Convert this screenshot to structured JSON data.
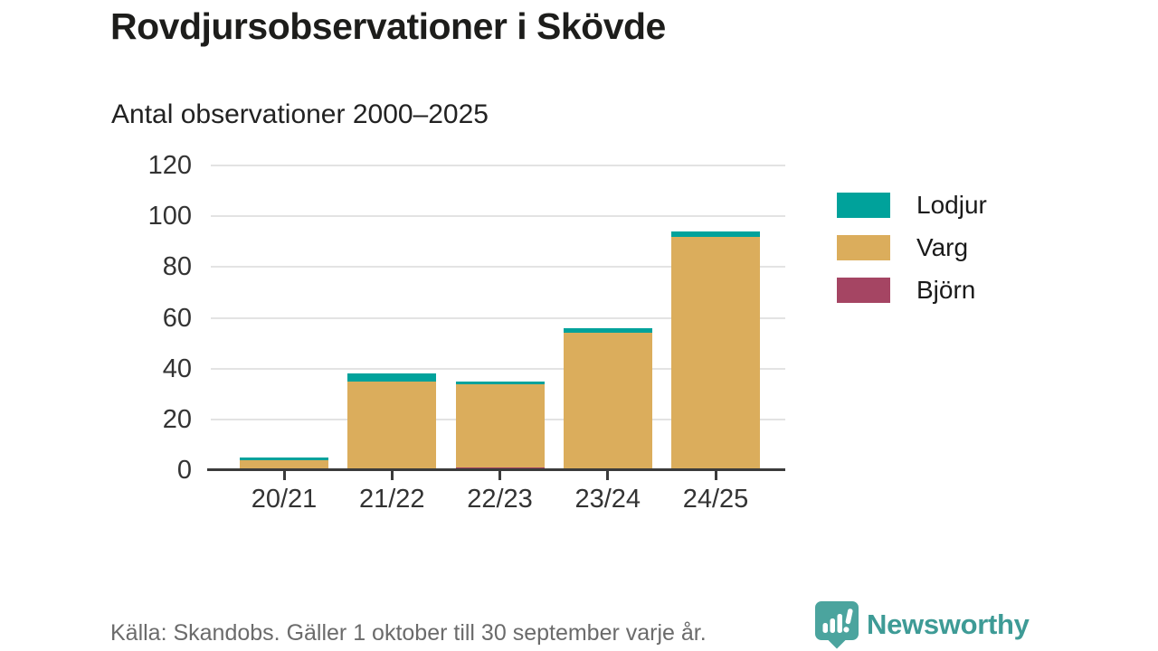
{
  "title": "Rovdjursobservationer i Skövde",
  "subtitle": "Antal observationer 2000–2025",
  "footer": {
    "source": "Källa: Skandobs. Gäller 1 oktober till 30 september varje år."
  },
  "branding": {
    "name": "Newsworthy",
    "icon": "bar-chart-speech-bubble-icon",
    "text_color": "#3e9b96",
    "icon_color": "#4ba49e"
  },
  "colors": {
    "lodjur": "#00a29b",
    "varg": "#dbad5c",
    "bjorn": "#a54563",
    "title_text": "#1d1d1b",
    "axis_text": "#333333",
    "gridline": "#e3e3e3",
    "axis_line": "#3b3b3b",
    "source_text": "#6b6b6b"
  },
  "chart_data": {
    "type": "bar",
    "stacked": true,
    "title": "Rovdjursobservationer i Skövde",
    "subtitle": "Antal observationer 2000–2025",
    "categories": [
      "20/21",
      "21/22",
      "22/23",
      "23/24",
      "24/25"
    ],
    "series": [
      {
        "name": "Björn",
        "color": "#a54563",
        "values": [
          0,
          0,
          1,
          0,
          0
        ]
      },
      {
        "name": "Varg",
        "color": "#dbad5c",
        "values": [
          4,
          35,
          33,
          54,
          92
        ]
      },
      {
        "name": "Lodjur",
        "color": "#00a29b",
        "values": [
          1,
          3,
          1,
          2,
          2
        ]
      }
    ],
    "totals": [
      5,
      38,
      35,
      56,
      94
    ],
    "xlabel": "",
    "ylabel": "",
    "ylim": [
      0,
      120
    ],
    "yticks": [
      0,
      20,
      40,
      60,
      80,
      100,
      120
    ],
    "grid": true,
    "legend_position": "right",
    "legend_entries": [
      "Lodjur",
      "Varg",
      "Björn"
    ]
  },
  "legend": {
    "items": [
      {
        "label": "Lodjur",
        "color": "#00a29b"
      },
      {
        "label": "Varg",
        "color": "#dbad5c"
      },
      {
        "label": "Björn",
        "color": "#a54563"
      }
    ]
  }
}
